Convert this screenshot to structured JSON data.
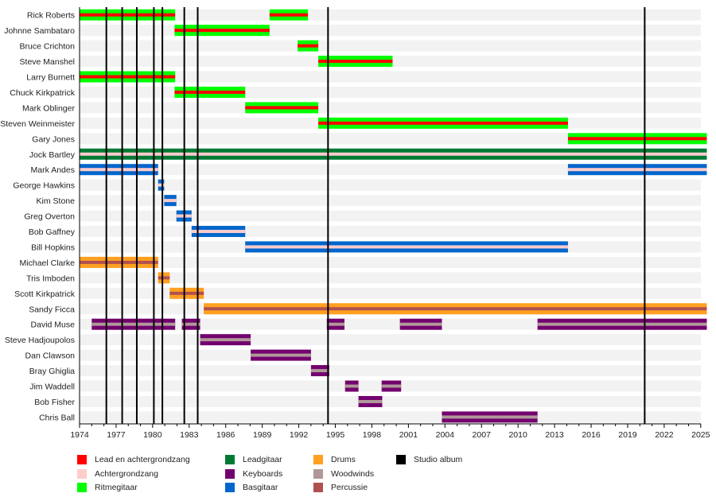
{
  "chart_data": {
    "type": "timeline",
    "title": "",
    "xlabel": "",
    "ylabel": "",
    "xlim": [
      1974,
      2025.5
    ],
    "x_ticks": [
      1974,
      1977,
      1980,
      1983,
      1986,
      1989,
      1992,
      1995,
      1998,
      2001,
      2004,
      2007,
      2010,
      2013,
      2016,
      2019,
      2022,
      2025
    ],
    "minor_tick_interval": 1,
    "studio_albums": [
      1976.2,
      1977.5,
      1978.7,
      1980.1,
      1980.8,
      1982.6,
      1983.7,
      1994.4,
      2020.4
    ],
    "colors": {
      "lead_vocals": "#ff0000",
      "backing_vocals": "#ffcccc",
      "rhythm_guitar": "#00ff00",
      "lead_guitar": "#007a33",
      "keyboards": "#73006f",
      "bass": "#0066cc",
      "drums": "#ffa020",
      "woodwinds": "#b09898",
      "percussion": "#b05050",
      "studio_album": "#000000",
      "row_band": "#f2f2f2"
    },
    "members": [
      {
        "name": "Rick Roberts",
        "main": "rhythm_guitar",
        "stripe": "lead_vocals",
        "periods": [
          [
            1974,
            1981.85
          ],
          [
            1989.6,
            1992.75
          ]
        ]
      },
      {
        "name": "Johnne Sambataro",
        "main": "rhythm_guitar",
        "stripe": "lead_vocals",
        "periods": [
          [
            1981.8,
            1989.6
          ]
        ]
      },
      {
        "name": "Bruce Crichton",
        "main": "rhythm_guitar",
        "stripe": "lead_vocals",
        "periods": [
          [
            1991.9,
            1993.6
          ]
        ]
      },
      {
        "name": "Steve Manshel",
        "main": "rhythm_guitar",
        "stripe": "lead_vocals",
        "periods": [
          [
            1993.6,
            1999.7
          ]
        ]
      },
      {
        "name": "Larry Burnett",
        "main": "rhythm_guitar",
        "stripe": "lead_vocals",
        "periods": [
          [
            1974,
            1981.85
          ]
        ]
      },
      {
        "name": "Chuck Kirkpatrick",
        "main": "rhythm_guitar",
        "stripe": "lead_vocals",
        "periods": [
          [
            1981.8,
            1987.6
          ]
        ]
      },
      {
        "name": "Mark Oblinger",
        "main": "rhythm_guitar",
        "stripe": "lead_vocals",
        "periods": [
          [
            1987.6,
            1993.6
          ]
        ]
      },
      {
        "name": "Steven Weinmeister",
        "main": "rhythm_guitar",
        "stripe": "lead_vocals",
        "periods": [
          [
            1993.6,
            2014.1
          ]
        ]
      },
      {
        "name": "Gary Jones",
        "main": "rhythm_guitar",
        "stripe": "lead_vocals",
        "periods": [
          [
            2014.1,
            2025.5
          ]
        ]
      },
      {
        "name": "Jock Bartley",
        "main": "lead_guitar",
        "stripe": "backing_vocals",
        "periods": [
          [
            1974,
            2025.5
          ]
        ]
      },
      {
        "name": "Mark Andes",
        "main": "bass",
        "stripe": "backing_vocals",
        "periods": [
          [
            1974,
            1980.45
          ],
          [
            2014.1,
            2025.5
          ]
        ]
      },
      {
        "name": "George Hawkins",
        "main": "bass",
        "stripe": "backing_vocals",
        "periods": [
          [
            1980.45,
            1980.95
          ]
        ]
      },
      {
        "name": "Kim Stone",
        "main": "bass",
        "stripe": "backing_vocals",
        "periods": [
          [
            1980.95,
            1981.95
          ]
        ]
      },
      {
        "name": "Greg Overton",
        "main": "bass",
        "stripe": "backing_vocals",
        "periods": [
          [
            1981.95,
            1983.2
          ]
        ]
      },
      {
        "name": "Bob Gaffney",
        "main": "bass",
        "stripe": "backing_vocals",
        "periods": [
          [
            1983.2,
            1987.6
          ]
        ]
      },
      {
        "name": "Bill Hopkins",
        "main": "bass",
        "stripe": "backing_vocals",
        "periods": [
          [
            1987.6,
            2014.1
          ]
        ]
      },
      {
        "name": "Michael Clarke",
        "main": "drums",
        "stripe": "percussion",
        "periods": [
          [
            1974,
            1980.45
          ]
        ]
      },
      {
        "name": "Tris Imboden",
        "main": "drums",
        "stripe": "percussion",
        "periods": [
          [
            1980.45,
            1981.4
          ]
        ]
      },
      {
        "name": "Scott Kirkpatrick",
        "main": "drums",
        "stripe": "percussion",
        "periods": [
          [
            1981.4,
            1984.2
          ]
        ]
      },
      {
        "name": "Sandy Ficca",
        "main": "drums",
        "stripe": "percussion",
        "periods": [
          [
            1984.2,
            2025.5
          ]
        ]
      },
      {
        "name": "David Muse",
        "main": "keyboards",
        "stripe": "woodwinds",
        "periods": [
          [
            1975,
            1981.85
          ],
          [
            1982.4,
            1983.9
          ],
          [
            1994.3,
            1995.75
          ],
          [
            2000.3,
            2003.75
          ],
          [
            2011.6,
            2025.5
          ]
        ]
      },
      {
        "name": "Steve Hadjoupolos",
        "main": "keyboards",
        "stripe": "woodwinds",
        "periods": [
          [
            1983.9,
            1988.05
          ]
        ]
      },
      {
        "name": "Dan Clawson",
        "main": "keyboards",
        "stripe": "woodwinds",
        "periods": [
          [
            1988.05,
            1993.0
          ]
        ]
      },
      {
        "name": "Bray Ghiglia",
        "main": "keyboards",
        "stripe": "woodwinds",
        "periods": [
          [
            1993.0,
            1994.5
          ]
        ]
      },
      {
        "name": "Jim Waddell",
        "main": "keyboards",
        "stripe": "woodwinds",
        "periods": [
          [
            1995.8,
            1996.9
          ],
          [
            1998.8,
            2000.4
          ]
        ]
      },
      {
        "name": "Bob Fisher",
        "main": "keyboards",
        "stripe": "woodwinds",
        "periods": [
          [
            1996.9,
            1998.85
          ]
        ]
      },
      {
        "name": "Chris Ball",
        "main": "keyboards",
        "stripe": "woodwinds",
        "periods": [
          [
            2003.75,
            2011.6
          ]
        ]
      }
    ],
    "legend": [
      {
        "key": "lead_vocals",
        "label": "Lead en achtergrondzang"
      },
      {
        "key": "backing_vocals",
        "label": "Achtergrondzang"
      },
      {
        "key": "rhythm_guitar",
        "label": "Ritmegitaar"
      },
      {
        "key": "lead_guitar",
        "label": "Leadgitaar"
      },
      {
        "key": "keyboards",
        "label": "Keyboards"
      },
      {
        "key": "bass",
        "label": "Basgitaar"
      },
      {
        "key": "drums",
        "label": "Drums"
      },
      {
        "key": "woodwinds",
        "label": "Woodwinds"
      },
      {
        "key": "percussion",
        "label": "Percussie"
      },
      {
        "key": "studio_album",
        "label": "Studio album"
      }
    ],
    "legend_placement": "bottom"
  }
}
